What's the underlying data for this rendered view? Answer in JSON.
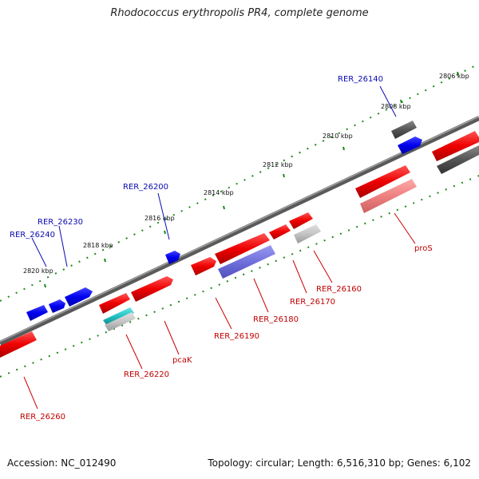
{
  "title": "Rhodococcus erythropolis PR4, complete genome",
  "footer": {
    "accession": "Accession: NC_012490",
    "summary": "Topology: circular; Length: 6,516,310 bp; Genes: 6,102"
  },
  "ticks": [
    {
      "label": "2806 kbp"
    },
    {
      "label": "2808 kbp"
    },
    {
      "label": "2810 kbp"
    },
    {
      "label": "2812 kbp"
    },
    {
      "label": "2814 kbp"
    },
    {
      "label": "2816 kbp"
    },
    {
      "label": "2818 kbp"
    },
    {
      "label": "2820 kbp"
    }
  ],
  "genes_top": [
    {
      "label": "RER_26140",
      "color": "#1010cc"
    },
    {
      "label": "RER_26200",
      "color": "#1010cc"
    },
    {
      "label": "RER_26230",
      "color": "#1010cc"
    },
    {
      "label": "RER_26240",
      "color": "#1010cc"
    }
  ],
  "genes_bottom": [
    {
      "label": "proS",
      "color": "#cc0000"
    },
    {
      "label": "RER_26160",
      "color": "#cc0000"
    },
    {
      "label": "RER_26170",
      "color": "#cc0000"
    },
    {
      "label": "RER_26180",
      "color": "#cc0000"
    },
    {
      "label": "RER_26190",
      "color": "#cc0000"
    },
    {
      "label": "pcaK",
      "color": "#cc0000"
    },
    {
      "label": "RER_26220",
      "color": "#cc0000"
    },
    {
      "label": "RER_26260",
      "color": "#cc0000"
    }
  ]
}
